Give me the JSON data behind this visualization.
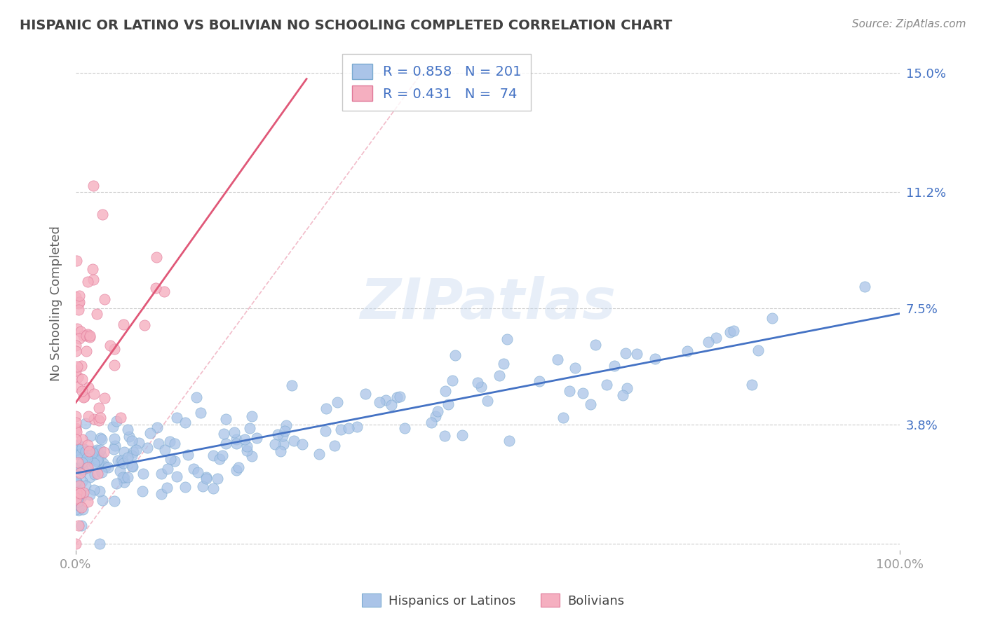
{
  "title": "HISPANIC OR LATINO VS BOLIVIAN NO SCHOOLING COMPLETED CORRELATION CHART",
  "source_text": "Source: ZipAtlas.com",
  "ylabel": "No Schooling Completed",
  "watermark": "ZIPatlas",
  "xlim": [
    0.0,
    1.0
  ],
  "ylim": [
    -0.002,
    0.155
  ],
  "yticks": [
    0.0,
    0.038,
    0.075,
    0.112,
    0.15
  ],
  "ytick_labels": [
    "",
    "3.8%",
    "7.5%",
    "11.2%",
    "15.0%"
  ],
  "blue_R": 0.858,
  "blue_N": 201,
  "pink_R": 0.431,
  "pink_N": 74,
  "blue_scatter_color": "#aac4e8",
  "blue_edge_color": "#7aaad0",
  "blue_line_color": "#4472c4",
  "pink_scatter_color": "#f5afc0",
  "pink_edge_color": "#e07898",
  "pink_line_color": "#e05878",
  "diagonal_color": "#f0b0c0",
  "legend_label_blue": "Hispanics or Latinos",
  "legend_label_pink": "Bolivians",
  "title_color": "#404040",
  "axis_label_color": "#606060",
  "right_tick_color": "#4472c4",
  "bottom_tick_color": "#999999",
  "background_color": "#ffffff",
  "grid_color": "#cccccc",
  "legend_text_color": "#444444"
}
